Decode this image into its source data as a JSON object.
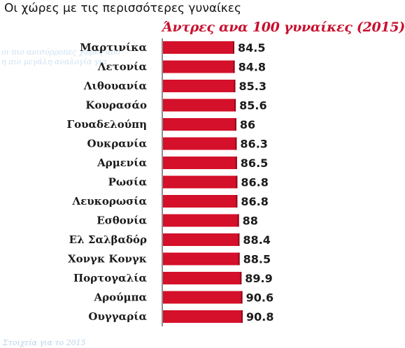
{
  "header": {
    "title": "Οι χώρες με τις περισσότερες γυναίκες",
    "ghost_line_1": "οι πιο ανισόρροπες χώρες από",
    "ghost_line_2": "η πιο μεγάλη αναλογία για"
  },
  "footer": {
    "note": "Στοιχεία για το 2015"
  },
  "colors": {
    "bar": "#d4102a",
    "bar_edge": "#8e0b1c",
    "axis": "#444444",
    "subtitle": "#c8102e"
  },
  "chart_data": {
    "type": "bar",
    "orientation": "horizontal",
    "title": "Άντρες ανα 100 γυναίκες (2015)",
    "categories": [
      "Μαρτινίκα",
      "Λετονία",
      "Λιθουανία",
      "Κουρασάο",
      "Γουαδελούπη",
      "Ουκρανία",
      "Αρμενία",
      "Ρωσία",
      "Λευκορωσία",
      "Εσθονία",
      "Ελ Σαλβαδόρ",
      "Χονγκ Κονγκ",
      "Πορτογαλία",
      "Αρούμπα",
      "Ουγγαρία"
    ],
    "values": [
      84.5,
      84.8,
      85.3,
      85.6,
      86,
      86.3,
      86.5,
      86.8,
      86.8,
      88,
      88.4,
      88.5,
      89.9,
      90.6,
      90.8
    ],
    "value_labels": [
      "84.5",
      "84.8",
      "85.3",
      "85.6",
      "86",
      "86.3",
      "86.5",
      "86.8",
      "86.8",
      "88",
      "88.4",
      "88.5",
      "89.9",
      "90.6",
      "90.8"
    ],
    "xlim": [
      0,
      90.8
    ],
    "grid": false,
    "legend": "none"
  }
}
